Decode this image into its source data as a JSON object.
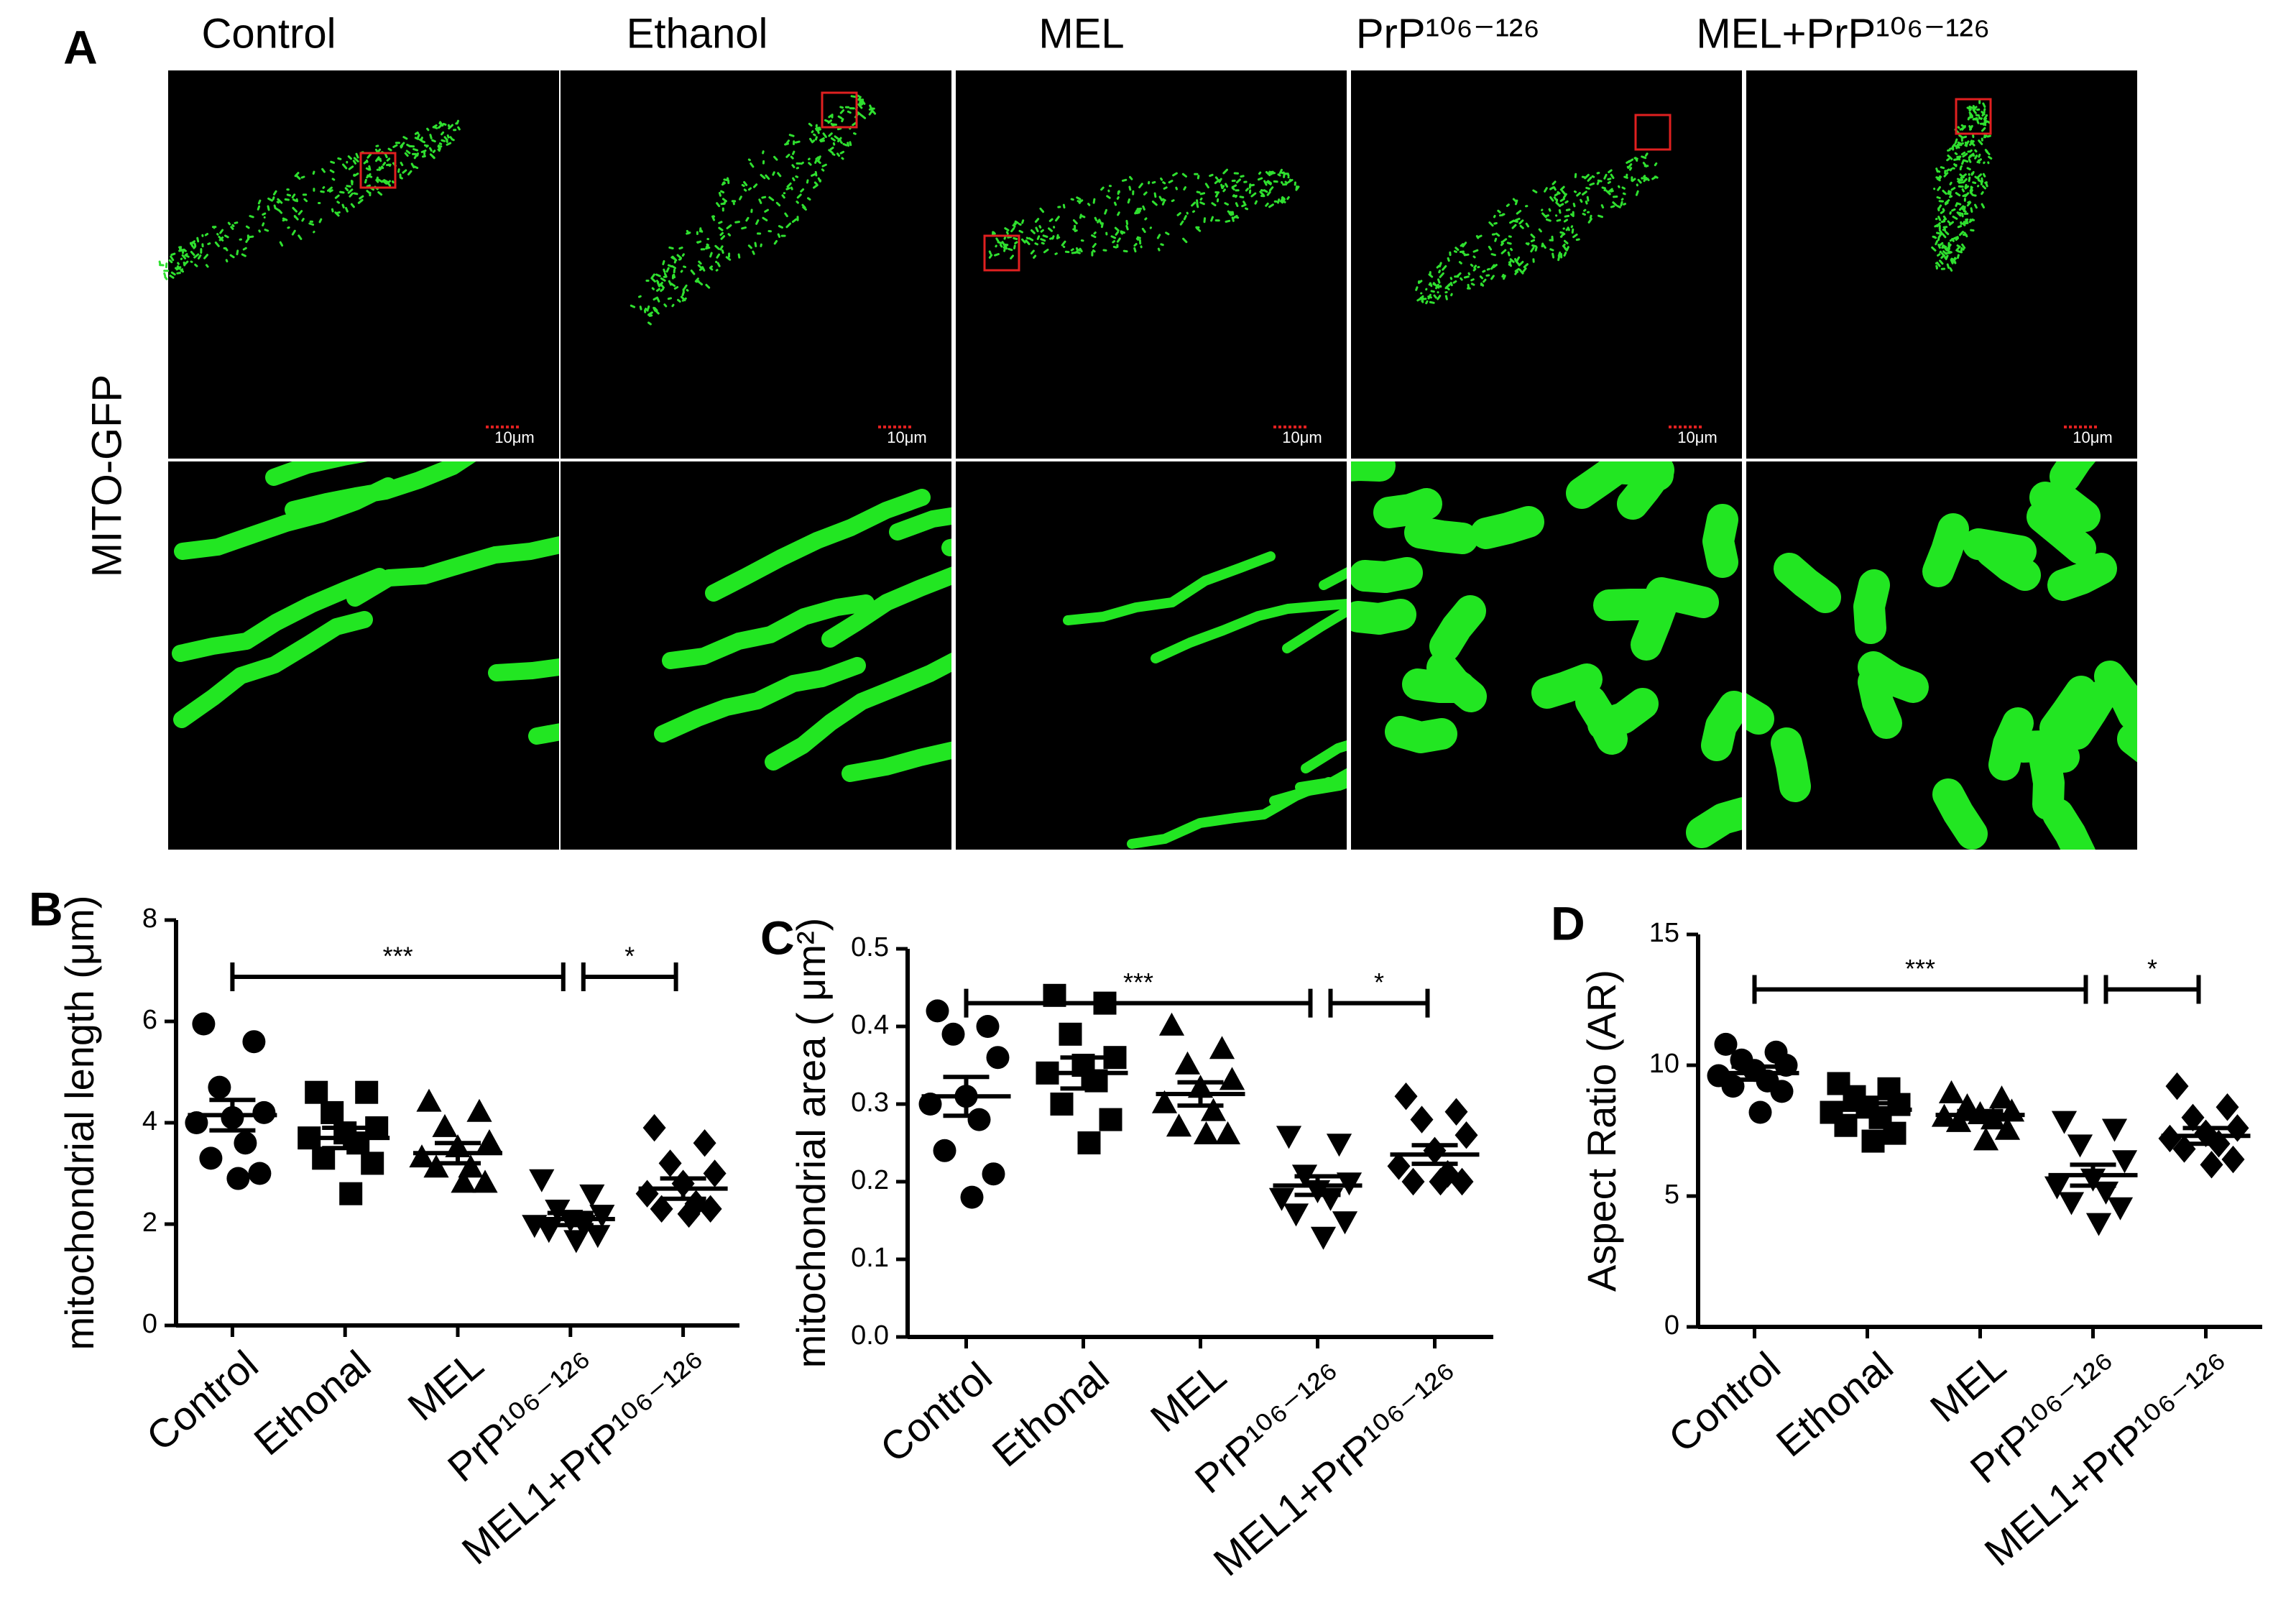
{
  "panel_a": {
    "label": "A",
    "columns": [
      "Control",
      "Ethanol",
      "MEL",
      "PrP¹⁰⁶⁻¹²⁶",
      "MEL+PrP¹⁰⁶⁻¹²⁶"
    ],
    "row_label": "MITO-GFP",
    "scale_bar": "10μm"
  },
  "chart_data": [
    {
      "type": "dot",
      "panel": "B",
      "ylabel": "mitochondrial length (μm)",
      "categories": [
        "Control",
        "Ethonal",
        "MEL",
        "PrP¹⁰⁶⁻¹²⁶",
        "MEL1+PrP¹⁰⁶⁻¹²⁶"
      ],
      "groups": [
        [
          5.95,
          5.6,
          4.7,
          4.2,
          4.1,
          4.0,
          3.6,
          3.3,
          3.0,
          2.9
        ],
        [
          4.6,
          4.6,
          4.2,
          3.9,
          3.8,
          3.7,
          3.6,
          3.3,
          3.2,
          2.6
        ],
        [
          4.4,
          4.2,
          3.9,
          3.6,
          3.5,
          3.3,
          3.1,
          3.1,
          2.8,
          2.8
        ],
        [
          2.9,
          2.6,
          2.3,
          2.2,
          2.1,
          2.0,
          2.0,
          1.9,
          1.8,
          1.7
        ],
        [
          3.9,
          3.6,
          3.2,
          3.0,
          2.8,
          2.6,
          2.4,
          2.3,
          2.3,
          2.2
        ]
      ],
      "means": [
        4.15,
        3.7,
        3.4,
        2.1,
        2.7
      ],
      "sems": [
        0.3,
        0.2,
        0.2,
        0.12,
        0.2
      ],
      "markers": [
        "circle",
        "square",
        "triangle-up",
        "triangle-down",
        "diamond"
      ],
      "color": "#000000",
      "ylim": [
        0,
        8
      ],
      "yticks": [
        0,
        2,
        4,
        6,
        8
      ],
      "significance": [
        {
          "from": 0,
          "to": 3,
          "label": "***"
        },
        {
          "from": 3,
          "to": 4,
          "label": "*"
        }
      ]
    },
    {
      "type": "dot",
      "panel": "C",
      "ylabel": "mitochondrial area ( μm²)",
      "categories": [
        "Control",
        "Ethonal",
        "MEL",
        "PrP¹⁰⁶⁻¹²⁶",
        "MEL1+PrP¹⁰⁶⁻¹²⁶"
      ],
      "groups": [
        [
          0.42,
          0.4,
          0.39,
          0.36,
          0.31,
          0.3,
          0.28,
          0.24,
          0.21,
          0.18
        ],
        [
          0.44,
          0.43,
          0.39,
          0.36,
          0.35,
          0.34,
          0.33,
          0.3,
          0.28,
          0.25
        ],
        [
          0.4,
          0.37,
          0.35,
          0.33,
          0.32,
          0.3,
          0.29,
          0.27,
          0.26,
          0.26
        ],
        [
          0.26,
          0.25,
          0.21,
          0.2,
          0.19,
          0.18,
          0.18,
          0.16,
          0.15,
          0.13
        ],
        [
          0.31,
          0.29,
          0.28,
          0.26,
          0.24,
          0.22,
          0.21,
          0.2,
          0.2,
          0.2
        ]
      ],
      "means": [
        0.31,
        0.34,
        0.313,
        0.195,
        0.235
      ],
      "sems": [
        0.025,
        0.02,
        0.015,
        0.012,
        0.012
      ],
      "markers": [
        "circle",
        "square",
        "triangle-up",
        "triangle-down",
        "diamond"
      ],
      "color": "#000000",
      "ylim": [
        0,
        0.5
      ],
      "yticks": [
        {
          "value": 0,
          "label": "0.0"
        },
        0.1,
        0.2,
        0.3,
        0.4,
        0.5
      ],
      "significance": [
        {
          "from": 0,
          "to": 3,
          "label": "***"
        },
        {
          "from": 3,
          "to": 4,
          "label": "*"
        }
      ]
    },
    {
      "type": "dot",
      "panel": "D",
      "ylabel": "Aspect Ratio (AR)",
      "categories": [
        "Control",
        "Ethonal",
        "MEL",
        "PrP¹⁰⁶⁻¹²⁶",
        "MEL1+PrP¹⁰⁶⁻¹²⁶"
      ],
      "groups": [
        [
          10.8,
          10.5,
          10.2,
          10.0,
          9.8,
          9.6,
          9.4,
          9.2,
          9.0,
          8.2
        ],
        [
          9.3,
          9.1,
          8.8,
          8.5,
          8.4,
          8.2,
          8.0,
          7.7,
          7.4,
          7.1
        ],
        [
          8.9,
          8.7,
          8.4,
          8.2,
          8.1,
          8.0,
          7.9,
          7.8,
          7.5,
          7.1
        ],
        [
          7.9,
          7.6,
          7.0,
          6.4,
          5.7,
          5.4,
          5.2,
          4.8,
          4.6,
          4.0
        ],
        [
          9.2,
          8.4,
          8.0,
          7.6,
          7.4,
          7.2,
          7.0,
          6.8,
          6.4,
          6.2
        ]
      ],
      "means": [
        9.7,
        8.3,
        8.1,
        5.8,
        7.3
      ],
      "sems": [
        0.25,
        0.25,
        0.15,
        0.4,
        0.3
      ],
      "markers": [
        "circle",
        "square",
        "triangle-up",
        "triangle-down",
        "diamond"
      ],
      "color": "#000000",
      "ylim": [
        0,
        15
      ],
      "yticks": [
        0,
        5,
        10,
        15
      ],
      "significance": [
        {
          "from": 0,
          "to": 3,
          "label": "***"
        },
        {
          "from": 3,
          "to": 4,
          "label": "*"
        }
      ]
    }
  ]
}
